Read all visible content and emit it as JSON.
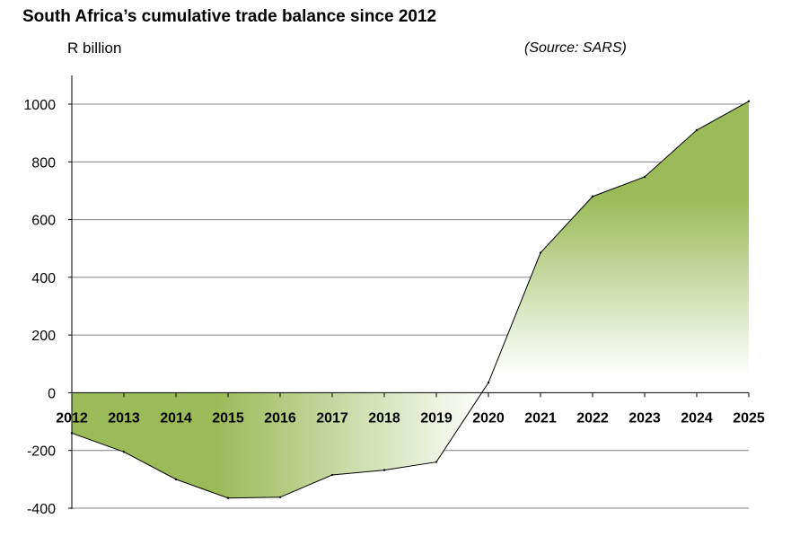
{
  "title": "South Africa’s cumulative trade balance since 2012",
  "unit_label": "R billion",
  "source": "(Source: SARS)",
  "colors": {
    "fill_dark": "#9bbb59",
    "fill_light": "#ffffff",
    "line": "#000000",
    "grid": "#808080"
  },
  "chart_data": {
    "type": "area",
    "title": "South Africa’s cumulative trade balance since 2012",
    "xlabel": "",
    "ylabel": "R billion",
    "x": [
      "2012",
      "2013",
      "2014",
      "2015",
      "2016",
      "2017",
      "2018",
      "2019",
      "2020",
      "2021",
      "2022",
      "2023",
      "2024",
      "2025"
    ],
    "values": [
      -140,
      -205,
      -300,
      -365,
      -362,
      -285,
      -268,
      -240,
      35,
      485,
      680,
      748,
      910,
      1010
    ],
    "ylim": [
      -400,
      1100
    ],
    "yticks": [
      -400,
      -200,
      0,
      200,
      400,
      600,
      800,
      1000
    ],
    "grid": true,
    "legend": "none"
  }
}
